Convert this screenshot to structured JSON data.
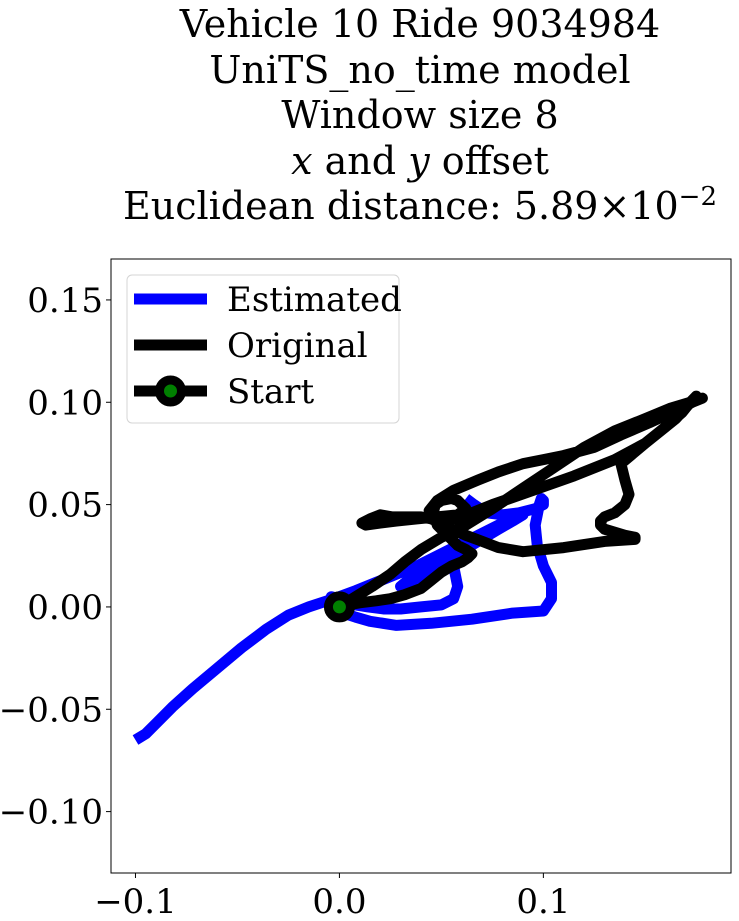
{
  "title": {
    "line1": "Vehicle 10 Ride 9034984",
    "line2": "UniTS_no_time model",
    "line3": "Window size 8",
    "line4_x": "x",
    "line4_mid": " and ",
    "line4_y": "y",
    "line4_end": " offset",
    "line5_base": "Euclidean distance: 5.89×10",
    "line5_exp": "−2"
  },
  "chart_data": {
    "type": "line",
    "title": "Vehicle 10 Ride 9034984 UniTS_no_time model Window size 8 x and y offset Euclidean distance: 5.89×10⁻²",
    "xlabel": "",
    "ylabel": "",
    "xlim": [
      -0.112,
      0.192
    ],
    "ylim": [
      -0.13,
      0.17
    ],
    "grid": false,
    "legend_position": "top-left",
    "x_ticks": [
      -0.1,
      0.0,
      0.1
    ],
    "x_tick_labels": [
      "−0.1",
      "0.0",
      "0.1"
    ],
    "y_ticks": [
      -0.1,
      -0.05,
      0.0,
      0.05,
      0.1,
      0.15
    ],
    "y_tick_labels": [
      "−0.10",
      "−0.05",
      "0.00",
      "0.05",
      "0.10",
      "0.15"
    ],
    "series": [
      {
        "name": "Estimated",
        "color": "#0000ff",
        "x": [
          -0.1,
          -0.095,
          -0.09,
          -0.082,
          -0.072,
          -0.06,
          -0.048,
          -0.036,
          -0.025,
          -0.015,
          -0.006,
          0.0,
          0.008,
          0.018,
          0.028,
          0.038,
          0.048,
          0.058,
          0.068,
          0.078,
          0.086,
          0.09,
          0.09,
          0.085,
          0.078,
          0.068,
          0.058,
          0.05,
          0.044,
          0.04,
          0.036,
          0.03,
          0.036,
          0.042,
          0.048,
          0.056,
          0.058,
          0.056,
          0.05,
          0.04,
          0.03,
          0.022,
          0.014,
          0.008,
          0.004,
          0.0,
          -0.004,
          -0.005,
          -0.002,
          0.002,
          0.008,
          0.015,
          0.028,
          0.045,
          0.065,
          0.085,
          0.1,
          0.104,
          0.104,
          0.1,
          0.097,
          0.096,
          0.097,
          0.098,
          0.099,
          0.1,
          0.1,
          0.096,
          0.088,
          0.08,
          0.072,
          0.066,
          0.062
        ],
        "y": [
          -0.065,
          -0.062,
          -0.057,
          -0.049,
          -0.04,
          -0.03,
          -0.02,
          -0.011,
          -0.004,
          0.0,
          0.003,
          0.005,
          0.008,
          0.012,
          0.016,
          0.02,
          0.025,
          0.03,
          0.035,
          0.04,
          0.044,
          0.046,
          0.045,
          0.042,
          0.038,
          0.032,
          0.026,
          0.02,
          0.016,
          0.014,
          0.012,
          0.01,
          0.015,
          0.02,
          0.024,
          0.02,
          0.01,
          0.004,
          0.001,
          0.0,
          -0.001,
          -0.001,
          0.0,
          0.001,
          0.003,
          0.004,
          0.005,
          0.003,
          -0.001,
          -0.003,
          -0.005,
          -0.007,
          -0.009,
          -0.008,
          -0.006,
          -0.003,
          -0.002,
          0.004,
          0.012,
          0.02,
          0.03,
          0.04,
          0.045,
          0.05,
          0.053,
          0.052,
          0.05,
          0.048,
          0.046,
          0.045,
          0.046,
          0.05,
          0.053
        ]
      },
      {
        "name": "Original",
        "color": "#000000",
        "x": [
          0.0,
          0.008,
          0.016,
          0.025,
          0.032,
          0.04,
          0.05,
          0.062,
          0.075,
          0.09,
          0.105,
          0.12,
          0.135,
          0.15,
          0.162,
          0.172,
          0.178,
          0.173,
          0.165,
          0.152,
          0.138,
          0.125,
          0.11,
          0.1,
          0.09,
          0.078,
          0.068,
          0.056,
          0.048,
          0.044,
          0.046,
          0.052,
          0.06,
          0.075,
          0.095,
          0.115,
          0.135,
          0.15,
          0.16,
          0.168,
          0.172,
          0.175,
          0.165,
          0.15,
          0.138,
          0.14,
          0.142,
          0.14,
          0.135,
          0.13,
          0.128,
          0.128,
          0.13,
          0.14,
          0.145,
          0.145,
          0.13,
          0.11,
          0.09,
          0.078,
          0.07,
          0.062,
          0.055,
          0.05,
          0.045,
          0.04,
          0.033,
          0.026,
          0.02,
          0.015,
          0.011,
          0.013,
          0.02,
          0.028,
          0.038,
          0.048,
          0.058,
          0.062,
          0.06,
          0.058,
          0.055,
          0.05,
          0.047,
          0.046,
          0.048,
          0.052,
          0.055,
          0.058,
          0.062,
          0.065,
          0.063,
          0.06,
          0.055,
          0.05,
          0.045,
          0.04,
          0.032,
          0.025,
          0.018,
          0.01,
          0.004,
          0.0
        ],
        "y": [
          0.0,
          0.005,
          0.01,
          0.016,
          0.022,
          0.028,
          0.034,
          0.04,
          0.048,
          0.058,
          0.068,
          0.078,
          0.086,
          0.092,
          0.097,
          0.1,
          0.102,
          0.1,
          0.096,
          0.09,
          0.084,
          0.078,
          0.074,
          0.072,
          0.07,
          0.066,
          0.062,
          0.057,
          0.052,
          0.047,
          0.043,
          0.042,
          0.044,
          0.05,
          0.057,
          0.064,
          0.072,
          0.08,
          0.088,
          0.095,
          0.1,
          0.103,
          0.092,
          0.08,
          0.07,
          0.062,
          0.055,
          0.05,
          0.046,
          0.044,
          0.042,
          0.04,
          0.038,
          0.035,
          0.034,
          0.033,
          0.032,
          0.029,
          0.027,
          0.029,
          0.032,
          0.035,
          0.038,
          0.041,
          0.043,
          0.044,
          0.044,
          0.044,
          0.045,
          0.043,
          0.041,
          0.04,
          0.041,
          0.042,
          0.043,
          0.044,
          0.045,
          0.048,
          0.05,
          0.052,
          0.053,
          0.052,
          0.05,
          0.046,
          0.04,
          0.036,
          0.033,
          0.03,
          0.028,
          0.026,
          0.024,
          0.022,
          0.02,
          0.017,
          0.013,
          0.009,
          0.006,
          0.004,
          0.003,
          0.002,
          0.001,
          0.0
        ]
      }
    ],
    "start_point": {
      "name": "Start",
      "x": 0.0,
      "y": 0.0,
      "marker_fill": "#008000",
      "marker_edge": "#000000"
    },
    "legend": [
      "Estimated",
      "Original",
      "Start"
    ]
  }
}
